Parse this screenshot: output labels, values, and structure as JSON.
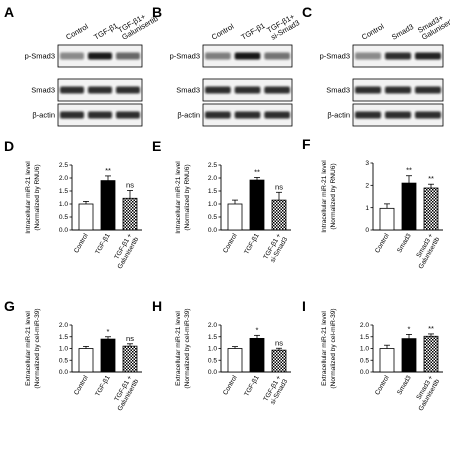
{
  "blot_panels": [
    {
      "letter": "A",
      "lanes": [
        [
          "Control"
        ],
        [
          "TGF-β1"
        ],
        [
          "TGF-β1+",
          "Galunisertib"
        ]
      ],
      "rows": [
        "p-Smad3",
        "Smad3",
        "β-actin"
      ],
      "psmad3_intensity": [
        0.45,
        0.95,
        0.6
      ]
    },
    {
      "letter": "B",
      "lanes": [
        [
          "Control"
        ],
        [
          "TGF-β1"
        ],
        [
          "TGF-β1+",
          "si-Smad3"
        ]
      ],
      "rows": [
        "p-Smad3",
        "Smad3",
        "β-actin"
      ],
      "psmad3_intensity": [
        0.5,
        0.95,
        0.55
      ]
    },
    {
      "letter": "C",
      "lanes": [
        [
          "Control"
        ],
        [
          "Smad3"
        ],
        [
          "Smad3+",
          "Galunisertib"
        ]
      ],
      "rows": [
        "p-Smad3",
        "Smad3",
        "β-actin"
      ],
      "psmad3_intensity": [
        0.45,
        0.85,
        0.9
      ]
    }
  ],
  "chart_data": [
    {
      "letter": "D",
      "type": "bar",
      "ylabel": [
        "Intracellular miR-21 level",
        "(Normalized by RNU6)"
      ],
      "ylim": [
        0,
        2.5
      ],
      "yticks": [
        "0.0",
        "0.5",
        "1.0",
        "1.5",
        "2.0",
        "2.5"
      ],
      "categories": [
        [
          "Control"
        ],
        [
          "TGF-β1"
        ],
        [
          "TGF-β1 +",
          "Galunisertib"
        ]
      ],
      "values": [
        1.0,
        1.9,
        1.22
      ],
      "errors": [
        0.1,
        0.18,
        0.3
      ],
      "significance": [
        "",
        "**",
        "ns"
      ],
      "fills": [
        "white",
        "black",
        "hatch"
      ]
    },
    {
      "letter": "E",
      "type": "bar",
      "ylabel": [
        "Intracellular miR-21 level",
        "(Normalized by RNU6)"
      ],
      "ylim": [
        0,
        2.5
      ],
      "yticks": [
        "0.0",
        "0.5",
        "1.0",
        "1.5",
        "2.0",
        "2.5"
      ],
      "categories": [
        [
          "Control"
        ],
        [
          "TGF-β1"
        ],
        [
          "TGF-β1 +",
          "si-Smad3"
        ]
      ],
      "values": [
        1.0,
        1.92,
        1.15
      ],
      "errors": [
        0.15,
        0.1,
        0.3
      ],
      "significance": [
        "",
        "**",
        "ns"
      ],
      "fills": [
        "white",
        "black",
        "hatch"
      ]
    },
    {
      "letter": "F",
      "type": "bar",
      "ylabel": [
        "Intracellular miR-21 level",
        "(Normalized by RNU6)"
      ],
      "ylim": [
        0,
        3
      ],
      "yticks": [
        "0",
        "1",
        "2",
        "3"
      ],
      "categories": [
        [
          "Control"
        ],
        [
          "Smad3"
        ],
        [
          "Smad3 +",
          "Galunisertib"
        ]
      ],
      "values": [
        0.97,
        2.1,
        1.88
      ],
      "errors": [
        0.2,
        0.33,
        0.17
      ],
      "significance": [
        "",
        "**",
        "**"
      ],
      "fills": [
        "white",
        "black",
        "hatch"
      ]
    },
    {
      "letter": "G",
      "type": "bar",
      "ylabel": [
        "Extracellular miR-21 level",
        "(Normalized by cel-miR-39)"
      ],
      "ylim": [
        0,
        2.0
      ],
      "yticks": [
        "0.0",
        "0.5",
        "1.0",
        "1.5",
        "2.0"
      ],
      "categories": [
        [
          "Control"
        ],
        [
          "TGF-β1"
        ],
        [
          "TGF-β1 +",
          "Galunisertib"
        ]
      ],
      "values": [
        1.0,
        1.4,
        1.1
      ],
      "errors": [
        0.09,
        0.1,
        0.1
      ],
      "significance": [
        "",
        "*",
        "ns"
      ],
      "fills": [
        "white",
        "black",
        "hatch"
      ]
    },
    {
      "letter": "H",
      "type": "bar",
      "ylabel": [
        "Extracellular miR-21 level",
        "(Normalized by cel-miR-39)"
      ],
      "ylim": [
        0,
        2.0
      ],
      "yticks": [
        "0.0",
        "0.5",
        "1.0",
        "1.5",
        "2.0"
      ],
      "categories": [
        [
          "Control"
        ],
        [
          "TGF-β1"
        ],
        [
          "TGF-β1 +",
          "si-Smad3"
        ]
      ],
      "values": [
        1.0,
        1.43,
        0.93
      ],
      "errors": [
        0.08,
        0.13,
        0.08
      ],
      "significance": [
        "",
        "*",
        "ns"
      ],
      "fills": [
        "white",
        "black",
        "hatch"
      ]
    },
    {
      "letter": "I",
      "type": "bar",
      "ylabel": [
        "Extracellular miR-21 level",
        "(Normalized by cel-miR-39)"
      ],
      "ylim": [
        0,
        2.0
      ],
      "yticks": [
        "0.0",
        "0.5",
        "1.0",
        "1.5",
        "2.0"
      ],
      "categories": [
        [
          "Control"
        ],
        [
          "Smad3"
        ],
        [
          "Smad3 +",
          "Galunisertib"
        ]
      ],
      "values": [
        1.0,
        1.42,
        1.52
      ],
      "errors": [
        0.14,
        0.18,
        0.1
      ],
      "significance": [
        "",
        "*",
        "**"
      ],
      "fills": [
        "white",
        "black",
        "hatch"
      ]
    }
  ]
}
